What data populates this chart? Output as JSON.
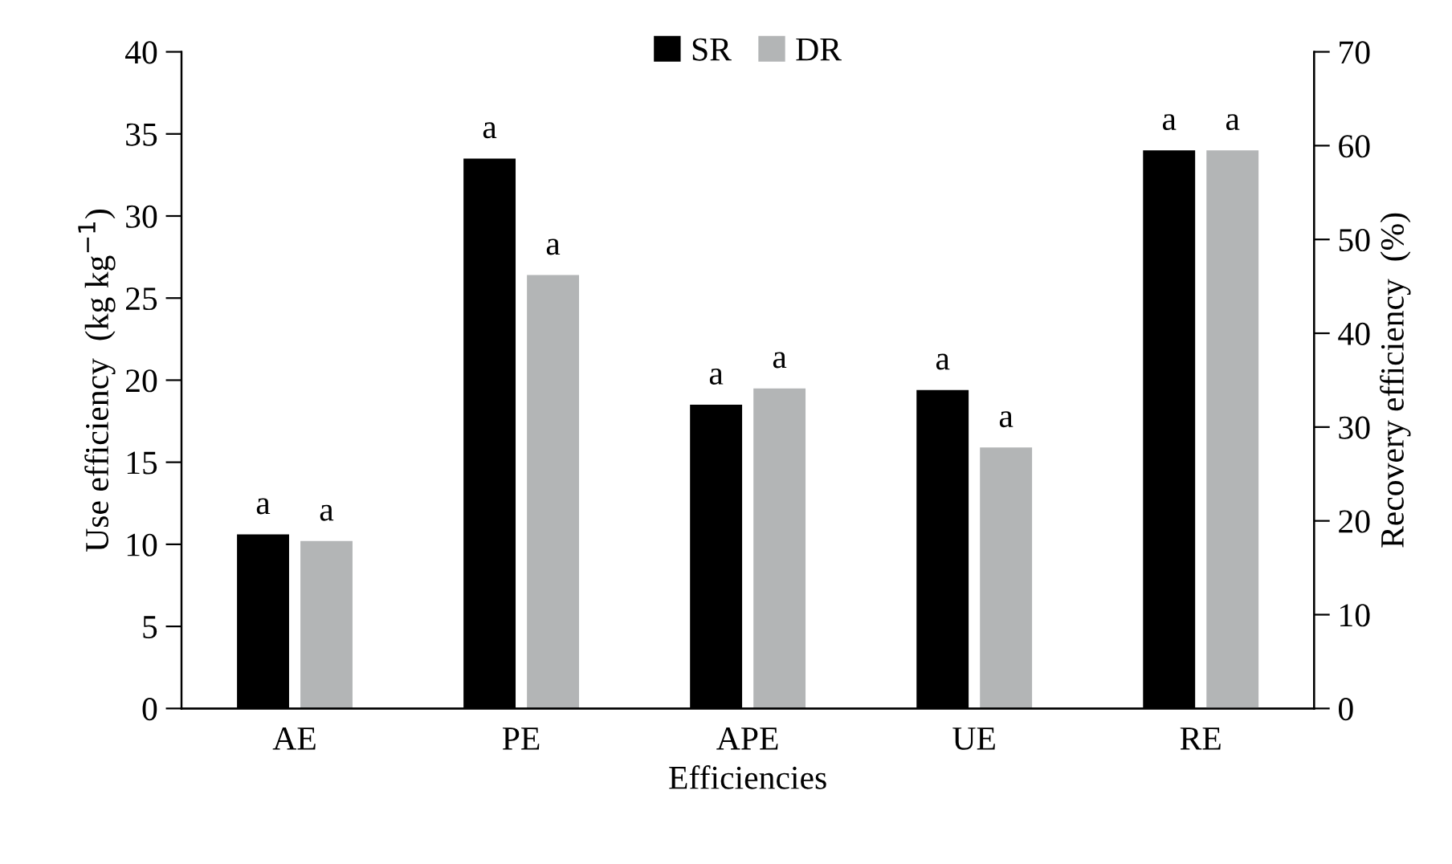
{
  "chart_data": {
    "type": "bar",
    "xlabel": "Efficiencies",
    "ylabel": "Use efficiency  (kg kg$^{−1}$)",
    "y2label": "Recovery efficiency  (%)",
    "categories": [
      "AE",
      "PE",
      "APE",
      "UE",
      "RE"
    ],
    "series": [
      {
        "name": "SR",
        "color": "#000000",
        "values": [
          10.6,
          33.5,
          18.5,
          19.4,
          null
        ],
        "value_labels": [
          "a",
          "a",
          "a",
          "a",
          null
        ]
      },
      {
        "name": "DR",
        "color": "#b3b5b6",
        "values": [
          10.2,
          26.4,
          19.5,
          15.9,
          null
        ],
        "value_labels": [
          "a",
          "a",
          "a",
          "a",
          null
        ]
      },
      {
        "color": "#000000",
        "axis": "y2",
        "values": [
          null,
          null,
          null,
          null,
          59.5
        ],
        "value_labels": [
          null,
          null,
          null,
          null,
          "a"
        ]
      },
      {
        "color": "#b3b5b6",
        "axis": "y2",
        "values": [
          null,
          null,
          null,
          null,
          59.5
        ],
        "value_labels": [
          null,
          null,
          null,
          null,
          "a"
        ]
      }
    ],
    "ylim": [
      0,
      40
    ],
    "yticks": [
      0,
      5,
      10,
      15,
      20,
      25,
      30,
      35,
      40
    ],
    "y2lim": [
      0,
      70
    ],
    "y2ticks": [
      0,
      10,
      20,
      30,
      40,
      50,
      60,
      70
    ],
    "legend": "top",
    "grid": false
  }
}
